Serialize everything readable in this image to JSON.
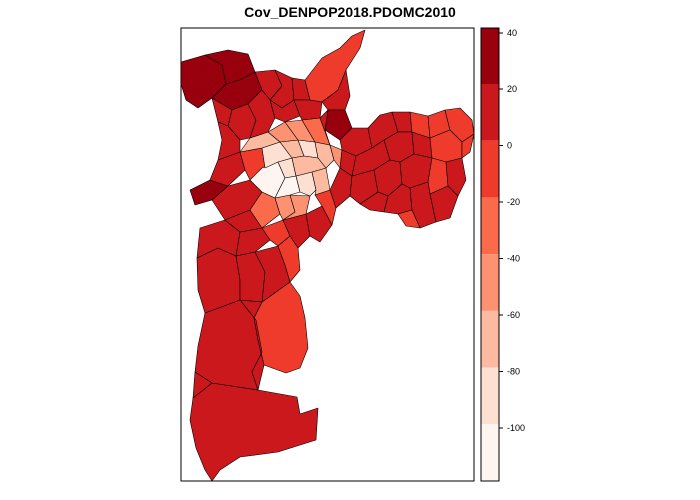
{
  "title": "Cov_DENPOP2018.PDOMC2010",
  "legend": {
    "breaks": [
      40,
      20,
      0,
      -20,
      -40,
      -60,
      -80,
      -100
    ],
    "bins": [
      {
        "color": "#99000d"
      },
      {
        "color": "#cb181d"
      },
      {
        "color": "#ef3b2c"
      },
      {
        "color": "#fb6a4a"
      },
      {
        "color": "#fc9272"
      },
      {
        "color": "#fcbba1"
      },
      {
        "color": "#fee0d2"
      },
      {
        "color": "#fff5f0"
      }
    ]
  },
  "palette": {
    "darkest": "#99000d",
    "dark": "#cb181d",
    "medium": "#ef3b2c",
    "light_medium": "#fb6a4a",
    "light": "#fc9272",
    "lighter": "#fcbba1",
    "lightest": "#fee0d2",
    "near_white": "#fff5f0"
  }
}
